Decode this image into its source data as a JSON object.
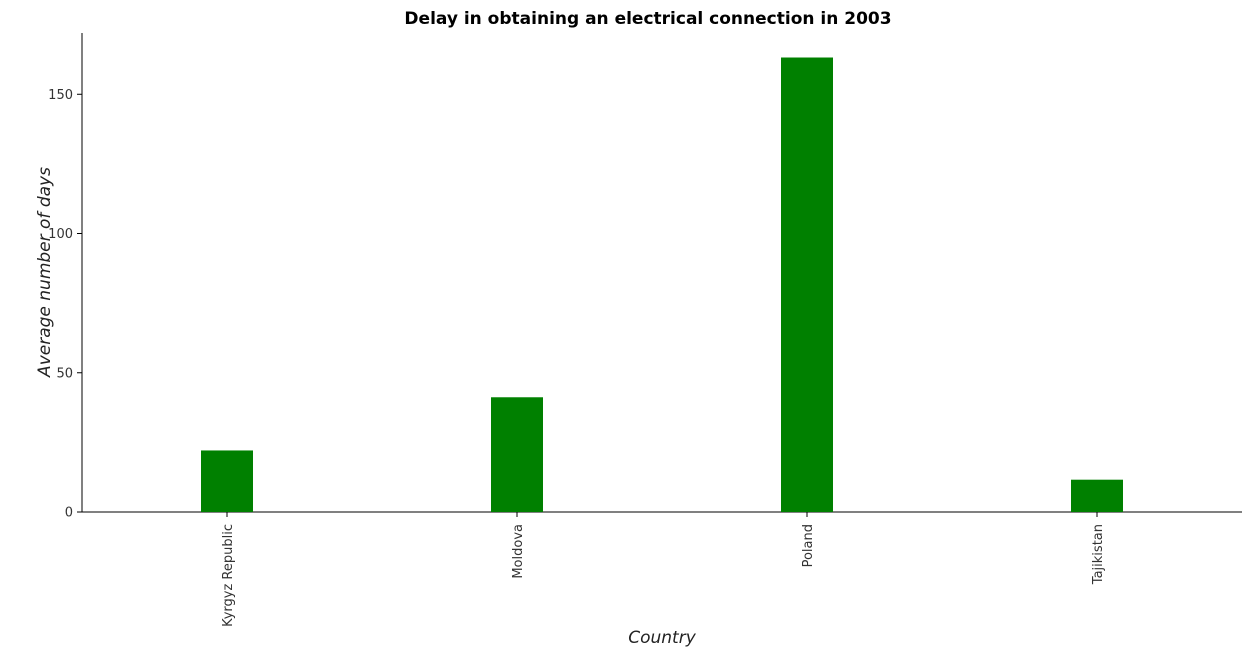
{
  "chart_data": {
    "type": "bar",
    "title": "Delay in obtaining an electrical connection in 2003",
    "xlabel": "Country",
    "ylabel": "Average number of days",
    "categories": [
      "Kyrgyz Republic",
      "Moldova",
      "Poland",
      "Tajikistan"
    ],
    "values": [
      22.1,
      41.2,
      163.2,
      11.6
    ],
    "yticks": [
      0,
      50,
      100,
      150
    ],
    "ylim": [
      0,
      172
    ],
    "bar_color": "#008000",
    "grid": false,
    "legend": "none"
  }
}
